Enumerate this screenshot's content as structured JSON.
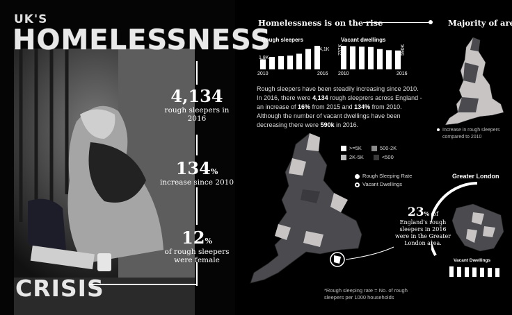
{
  "title": {
    "uk": "UK'S",
    "main": "HOMELESSNESS",
    "crisis": "CRISIS"
  },
  "stats": [
    {
      "value": "4,134",
      "suffix": "",
      "label_lines": [
        "rough sleepers in 2016"
      ]
    },
    {
      "value": "134",
      "suffix": "%",
      "label_lines": [
        "increase since 2010"
      ]
    },
    {
      "value": "12",
      "suffix": "%",
      "label_lines": [
        "of rough sleepers",
        "were female"
      ]
    }
  ],
  "section1": {
    "heading": "Homelessness is on the rise"
  },
  "section2": {
    "heading": "Majority of areas h"
  },
  "rough_chart": {
    "label": "Rough sleepers",
    "start_label": "1,8K",
    "end_label": "4,1K",
    "x_start": "2010",
    "x_end": "2016",
    "values": [
      1768,
      2181,
      2309,
      2414,
      2744,
      3569,
      4134
    ]
  },
  "vacant_chart": {
    "label": "Vacant dwellings",
    "start_label": "737K",
    "end_label": "590K",
    "x_start": "2010",
    "x_end": "2016",
    "values": [
      737,
      720,
      710,
      700,
      635,
      600,
      590
    ]
  },
  "paragraph": {
    "p1": "Rough sleepers have been steadily increasing since 2010. In 2016, there were ",
    "b1": "4,134",
    "p2": " rough sleeprers across England - an increase of ",
    "b2": "16%",
    "p3": " from 2015 and ",
    "b3": "134%",
    "p4": " from 2010. Although the number of vacant dwellings have been decreasing there were ",
    "b4": "590k",
    "p5": " in 2016."
  },
  "legend": {
    "items": [
      {
        "label": ">=5K",
        "color": "#ffffff"
      },
      {
        "label": "500-2K",
        "color": "#8a8a8a"
      },
      {
        "label": "2K-5K",
        "color": "#bdbdbd"
      },
      {
        "label": "<500",
        "color": "#3a3a3a"
      }
    ],
    "radio": [
      "Rough Sleeping Rate",
      "Vacant Dwellings"
    ]
  },
  "footnote": {
    "line1": "*Rough sleeping rate = No. of rough",
    "line2": "sleepers per 1000 households"
  },
  "small_map_note": {
    "line1": "Increase in rough sleepers",
    "line2": "compared to 2010"
  },
  "london": {
    "title": "Greater London",
    "pct": "23",
    "pct_suffix": "%",
    "of": "of",
    "lines": [
      "England's rough",
      "sleepers in 2016",
      "were in the Greater",
      "London area."
    ],
    "vacant_label": "Vacant Dwellings",
    "bars": [
      100,
      95,
      92,
      90,
      88,
      86,
      85
    ]
  },
  "colors": {
    "bg": "#000000",
    "map_dark": "#4a4a4f",
    "map_light": "#c8c4c4",
    "map_white": "#ffffff"
  }
}
